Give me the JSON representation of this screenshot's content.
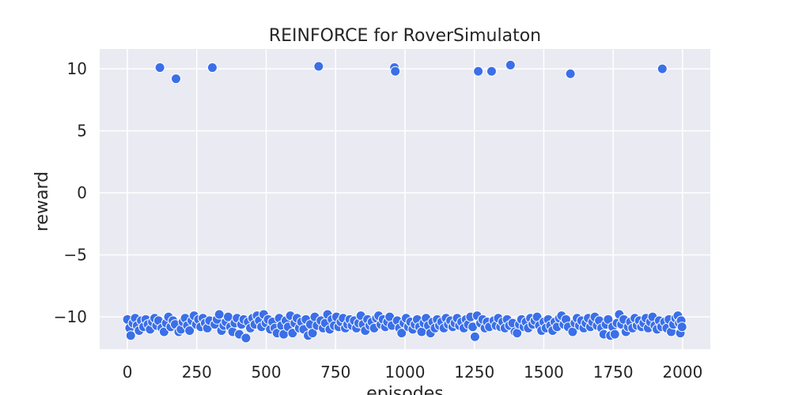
{
  "chart_data": {
    "type": "scatter",
    "title": "REINFORCE for RoverSimulaton",
    "xlabel": "episodes",
    "ylabel": "reward",
    "xlim": [
      -100,
      2100
    ],
    "ylim": [
      -12.6,
      11.6
    ],
    "xticks": [
      0,
      250,
      500,
      750,
      1000,
      1250,
      1500,
      1750,
      2000
    ],
    "xtick_labels": [
      "0",
      "250",
      "500",
      "750",
      "1000",
      "1250",
      "1500",
      "1750",
      "2000"
    ],
    "yticks": [
      10,
      5,
      0,
      -5,
      -10
    ],
    "ytick_labels": [
      "10",
      "5",
      "0",
      "−5",
      "−10"
    ],
    "grid": true,
    "legend": "none",
    "colors": {
      "background": "#EAEAF2",
      "grid": "#FFFFFF",
      "marker": "#3B6FE8",
      "marker_edge": "#FFFFFF"
    },
    "series": [
      {
        "high_reward_points": [
          [
            117,
            10.1
          ],
          [
            175,
            9.2
          ],
          [
            306,
            10.1
          ],
          [
            689,
            10.2
          ],
          [
            962,
            10.1
          ],
          [
            965,
            9.8
          ],
          [
            1264,
            9.8
          ],
          [
            1312,
            9.8
          ],
          [
            1380,
            10.3
          ],
          [
            1596,
            9.6
          ],
          [
            1927,
            10.0
          ]
        ],
        "low_reward_points": [
          [
            0,
            -10.2
          ],
          [
            8,
            -10.9
          ],
          [
            12,
            -11.5
          ],
          [
            20,
            -10.5
          ],
          [
            28,
            -10.1
          ],
          [
            35,
            -10.7
          ],
          [
            42,
            -11.1
          ],
          [
            50,
            -10.3
          ],
          [
            58,
            -10.8
          ],
          [
            66,
            -10.2
          ],
          [
            74,
            -10.6
          ],
          [
            82,
            -11.0
          ],
          [
            90,
            -10.4
          ],
          [
            98,
            -10.1
          ],
          [
            105,
            -10.7
          ],
          [
            112,
            -10.3
          ],
          [
            124,
            -10.9
          ],
          [
            132,
            -11.2
          ],
          [
            140,
            -10.5
          ],
          [
            148,
            -10.0
          ],
          [
            156,
            -10.8
          ],
          [
            164,
            -10.3
          ],
          [
            172,
            -10.6
          ],
          [
            185,
            -11.2
          ],
          [
            193,
            -11.0
          ],
          [
            200,
            -10.4
          ],
          [
            208,
            -10.1
          ],
          [
            216,
            -10.7
          ],
          [
            224,
            -11.1
          ],
          [
            232,
            -10.3
          ],
          [
            240,
            -9.9
          ],
          [
            248,
            -10.6
          ],
          [
            256,
            -10.2
          ],
          [
            264,
            -10.8
          ],
          [
            272,
            -10.1
          ],
          [
            280,
            -10.5
          ],
          [
            288,
            -10.9
          ],
          [
            296,
            -10.3
          ],
          [
            315,
            -10.6
          ],
          [
            323,
            -10.2
          ],
          [
            331,
            -9.8
          ],
          [
            339,
            -11.1
          ],
          [
            347,
            -10.7
          ],
          [
            355,
            -10.4
          ],
          [
            363,
            -10.0
          ],
          [
            371,
            -10.8
          ],
          [
            379,
            -11.2
          ],
          [
            387,
            -10.5
          ],
          [
            395,
            -10.1
          ],
          [
            403,
            -11.4
          ],
          [
            411,
            -10.6
          ],
          [
            419,
            -10.2
          ],
          [
            427,
            -11.7
          ],
          [
            435,
            -10.4
          ],
          [
            443,
            -10.9
          ],
          [
            451,
            -10.1
          ],
          [
            459,
            -10.6
          ],
          [
            467,
            -9.9
          ],
          [
            475,
            -10.3
          ],
          [
            483,
            -10.8
          ],
          [
            491,
            -9.8
          ],
          [
            499,
            -10.5
          ],
          [
            507,
            -10.2
          ],
          [
            515,
            -11.0
          ],
          [
            523,
            -10.4
          ],
          [
            531,
            -10.9
          ],
          [
            539,
            -11.3
          ],
          [
            547,
            -10.1
          ],
          [
            555,
            -10.7
          ],
          [
            563,
            -11.4
          ],
          [
            571,
            -10.3
          ],
          [
            579,
            -10.8
          ],
          [
            587,
            -9.9
          ],
          [
            595,
            -11.3
          ],
          [
            603,
            -10.5
          ],
          [
            611,
            -10.1
          ],
          [
            619,
            -10.9
          ],
          [
            627,
            -10.4
          ],
          [
            635,
            -11.0
          ],
          [
            643,
            -10.2
          ],
          [
            651,
            -11.5
          ],
          [
            659,
            -10.6
          ],
          [
            667,
            -11.3
          ],
          [
            675,
            -10.0
          ],
          [
            683,
            -10.7
          ],
          [
            697,
            -10.3
          ],
          [
            705,
            -10.9
          ],
          [
            713,
            -10.5
          ],
          [
            721,
            -9.8
          ],
          [
            729,
            -11.0
          ],
          [
            737,
            -10.2
          ],
          [
            745,
            -10.7
          ],
          [
            753,
            -10.0
          ],
          [
            761,
            -10.8
          ],
          [
            769,
            -10.4
          ],
          [
            777,
            -10.1
          ],
          [
            785,
            -10.9
          ],
          [
            793,
            -10.6
          ],
          [
            801,
            -10.2
          ],
          [
            809,
            -10.7
          ],
          [
            817,
            -10.3
          ],
          [
            825,
            -10.9
          ],
          [
            833,
            -10.5
          ],
          [
            841,
            -9.9
          ],
          [
            849,
            -10.6
          ],
          [
            857,
            -11.1
          ],
          [
            865,
            -10.2
          ],
          [
            873,
            -10.7
          ],
          [
            881,
            -10.4
          ],
          [
            889,
            -10.9
          ],
          [
            897,
            -10.1
          ],
          [
            905,
            -9.9
          ],
          [
            913,
            -10.6
          ],
          [
            921,
            -10.2
          ],
          [
            929,
            -10.8
          ],
          [
            937,
            -10.4
          ],
          [
            945,
            -10.0
          ],
          [
            953,
            -10.7
          ],
          [
            972,
            -10.3
          ],
          [
            980,
            -10.9
          ],
          [
            988,
            -11.3
          ],
          [
            996,
            -10.5
          ],
          [
            1004,
            -10.1
          ],
          [
            1012,
            -10.8
          ],
          [
            1020,
            -10.4
          ],
          [
            1028,
            -11.0
          ],
          [
            1036,
            -10.6
          ],
          [
            1044,
            -10.2
          ],
          [
            1052,
            -10.8
          ],
          [
            1060,
            -11.2
          ],
          [
            1068,
            -10.5
          ],
          [
            1076,
            -10.1
          ],
          [
            1084,
            -10.7
          ],
          [
            1092,
            -11.3
          ],
          [
            1100,
            -10.4
          ],
          [
            1108,
            -10.9
          ],
          [
            1116,
            -10.2
          ],
          [
            1124,
            -10.7
          ],
          [
            1132,
            -10.4
          ],
          [
            1140,
            -10.9
          ],
          [
            1148,
            -10.1
          ],
          [
            1156,
            -10.6
          ],
          [
            1164,
            -10.3
          ],
          [
            1172,
            -10.8
          ],
          [
            1180,
            -10.5
          ],
          [
            1188,
            -10.1
          ],
          [
            1196,
            -10.7
          ],
          [
            1204,
            -10.4
          ],
          [
            1212,
            -10.9
          ],
          [
            1220,
            -10.2
          ],
          [
            1228,
            -10.6
          ],
          [
            1236,
            -10.0
          ],
          [
            1244,
            -10.8
          ],
          [
            1252,
            -11.6
          ],
          [
            1260,
            -9.9
          ],
          [
            1272,
            -10.5
          ],
          [
            1280,
            -10.2
          ],
          [
            1288,
            -10.9
          ],
          [
            1296,
            -10.4
          ],
          [
            1304,
            -10.8
          ],
          [
            1320,
            -10.3
          ],
          [
            1328,
            -10.7
          ],
          [
            1336,
            -10.1
          ],
          [
            1344,
            -10.8
          ],
          [
            1352,
            -10.4
          ],
          [
            1360,
            -10.9
          ],
          [
            1368,
            -10.2
          ],
          [
            1376,
            -10.7
          ],
          [
            1388,
            -10.5
          ],
          [
            1396,
            -11.2
          ],
          [
            1404,
            -11.3
          ],
          [
            1412,
            -10.6
          ],
          [
            1420,
            -10.2
          ],
          [
            1428,
            -10.8
          ],
          [
            1436,
            -10.4
          ],
          [
            1444,
            -10.9
          ],
          [
            1452,
            -10.1
          ],
          [
            1460,
            -10.6
          ],
          [
            1468,
            -10.3
          ],
          [
            1476,
            -10.0
          ],
          [
            1484,
            -10.7
          ],
          [
            1492,
            -11.1
          ],
          [
            1500,
            -10.4
          ],
          [
            1508,
            -10.9
          ],
          [
            1516,
            -10.2
          ],
          [
            1524,
            -10.7
          ],
          [
            1532,
            -11.1
          ],
          [
            1540,
            -10.4
          ],
          [
            1548,
            -10.8
          ],
          [
            1556,
            -10.1
          ],
          [
            1564,
            -9.9
          ],
          [
            1572,
            -10.6
          ],
          [
            1580,
            -10.2
          ],
          [
            1588,
            -10.8
          ],
          [
            1604,
            -11.2
          ],
          [
            1612,
            -10.5
          ],
          [
            1620,
            -10.1
          ],
          [
            1628,
            -10.7
          ],
          [
            1636,
            -10.3
          ],
          [
            1644,
            -10.9
          ],
          [
            1652,
            -10.5
          ],
          [
            1660,
            -10.1
          ],
          [
            1668,
            -10.8
          ],
          [
            1676,
            -10.4
          ],
          [
            1684,
            -10.0
          ],
          [
            1692,
            -10.7
          ],
          [
            1700,
            -10.3
          ],
          [
            1708,
            -10.9
          ],
          [
            1716,
            -11.4
          ],
          [
            1724,
            -10.6
          ],
          [
            1732,
            -10.2
          ],
          [
            1740,
            -11.5
          ],
          [
            1748,
            -10.8
          ],
          [
            1756,
            -11.4
          ],
          [
            1764,
            -10.5
          ],
          [
            1772,
            -9.8
          ],
          [
            1780,
            -10.6
          ],
          [
            1788,
            -10.2
          ],
          [
            1796,
            -11.2
          ],
          [
            1804,
            -10.8
          ],
          [
            1812,
            -10.4
          ],
          [
            1820,
            -10.9
          ],
          [
            1828,
            -10.1
          ],
          [
            1836,
            -10.7
          ],
          [
            1844,
            -10.3
          ],
          [
            1852,
            -10.8
          ],
          [
            1860,
            -10.5
          ],
          [
            1868,
            -10.1
          ],
          [
            1876,
            -10.9
          ],
          [
            1884,
            -10.4
          ],
          [
            1892,
            -10.0
          ],
          [
            1900,
            -10.7
          ],
          [
            1908,
            -11.0
          ],
          [
            1916,
            -10.3
          ],
          [
            1924,
            -10.8
          ],
          [
            1935,
            -10.4
          ],
          [
            1943,
            -10.9
          ],
          [
            1951,
            -10.2
          ],
          [
            1959,
            -11.2
          ],
          [
            1967,
            -10.6
          ],
          [
            1975,
            -10.1
          ],
          [
            1983,
            -9.9
          ],
          [
            1988,
            -10.5
          ],
          [
            1992,
            -11.3
          ],
          [
            1995,
            -10.3
          ],
          [
            1998,
            -10.8
          ]
        ]
      }
    ]
  }
}
